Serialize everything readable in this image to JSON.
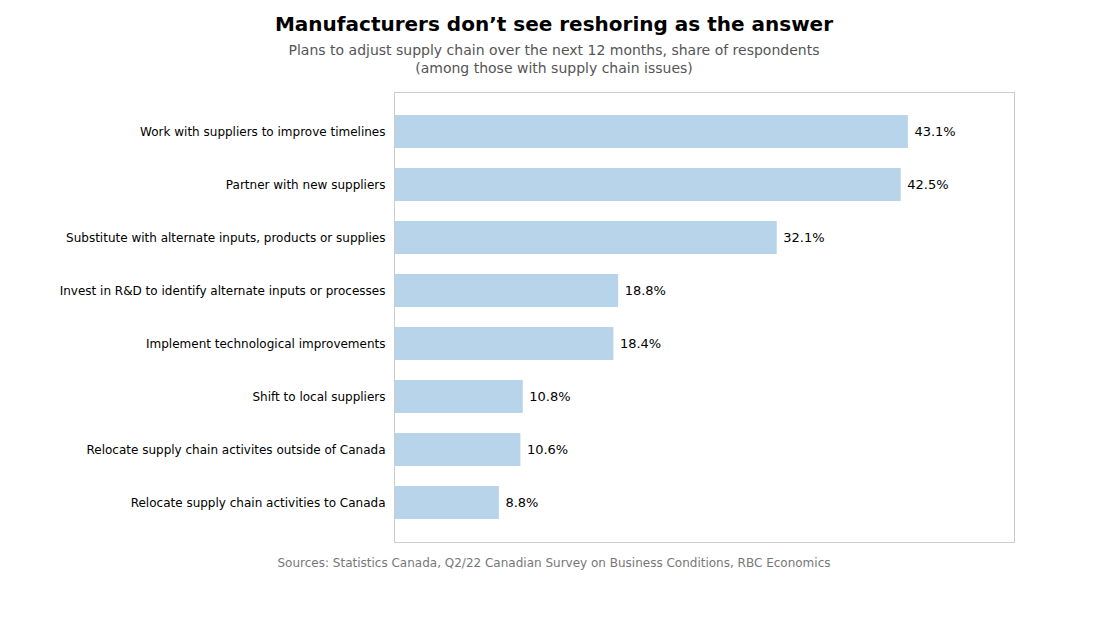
{
  "chart_data": {
    "type": "bar",
    "orientation": "horizontal",
    "title": "Manufacturers don’t see reshoring as the answer",
    "subtitle": [
      "Plans to adjust supply chain over the next 12 months, share of respondents",
      "(among those with supply chain issues)"
    ],
    "source": "Sources: Statistics Canada, Q2/22 Canadian Survey on Business Conditions, RBC Economics",
    "categories": [
      "Work with suppliers to improve timelines",
      "Partner with new suppliers",
      "Substitute with alternate inputs, products or supplies",
      "Invest in R&D to identify alternate inputs or processes",
      "Implement technological improvements",
      "Shift to local suppliers",
      "Relocate supply chain activites outside of Canada",
      "Relocate supply chain activities to Canada"
    ],
    "values": [
      43.1,
      42.5,
      32.1,
      18.8,
      18.4,
      10.8,
      10.6,
      8.8
    ],
    "value_labels": [
      "43.1%",
      "42.5%",
      "32.1%",
      "18.8%",
      "18.4%",
      "10.8%",
      "10.6%",
      "8.8%"
    ],
    "data_labels": true,
    "color": "#b8d4ea",
    "xlim": [
      0,
      52
    ],
    "tick_labels": "y",
    "grid": false
  }
}
